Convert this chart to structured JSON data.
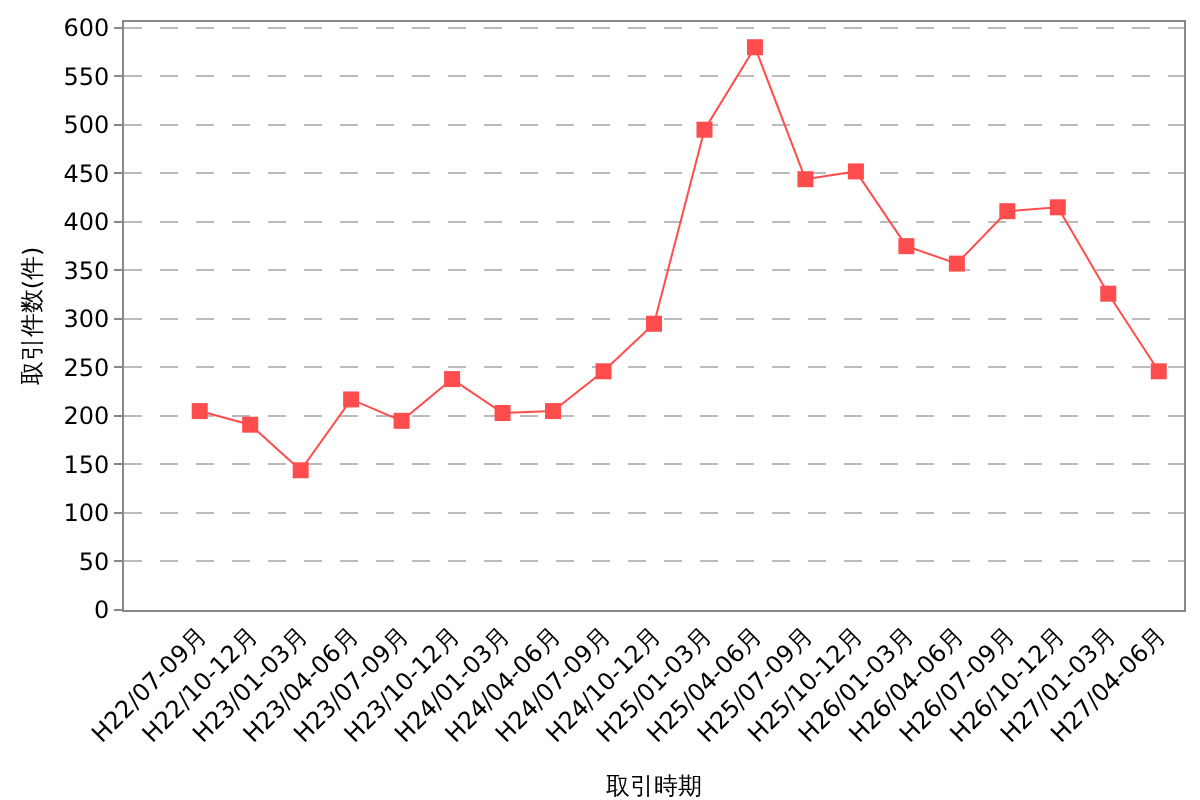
{
  "chart_data": {
    "type": "line",
    "xlabel": "取引時期",
    "ylabel": "取引件数(件)",
    "categories": [
      "H22/07-09月",
      "H22/10-12月",
      "H23/01-03月",
      "H23/04-06月",
      "H23/07-09月",
      "H23/10-12月",
      "H24/01-03月",
      "H24/04-06月",
      "H24/07-09月",
      "H24/10-12月",
      "H25/01-03月",
      "H25/04-06月",
      "H25/07-09月",
      "H25/10-12月",
      "H26/01-03月",
      "H26/04-06月",
      "H26/07-09月",
      "H26/10-12月",
      "H27/01-03月",
      "H27/04-06月"
    ],
    "series": [
      {
        "color": "#ff4c4c",
        "values": [
          205,
          191,
          144,
          217,
          195,
          238,
          203,
          205,
          246,
          295,
          495,
          580,
          444,
          452,
          375,
          357,
          411,
          415,
          326,
          246
        ]
      }
    ],
    "ylim": [
      0,
      606
    ],
    "yticks": [
      0,
      50,
      100,
      150,
      200,
      250,
      300,
      350,
      400,
      450,
      500,
      550,
      600
    ],
    "grid": "y",
    "legend": false,
    "marker": "square",
    "line_style": "solid"
  }
}
